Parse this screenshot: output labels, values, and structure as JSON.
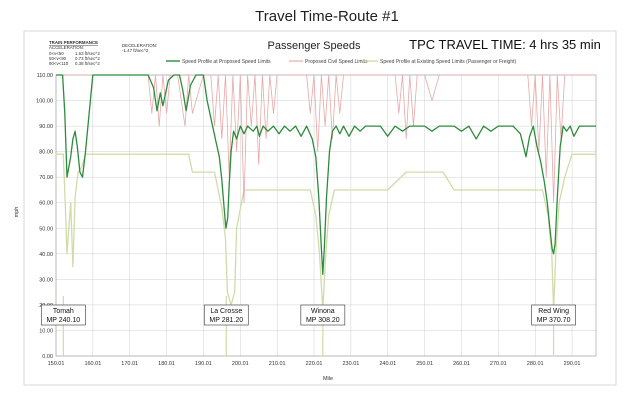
{
  "chart_data": {
    "type": "line",
    "title": "Travel Time-Route #1",
    "subtitle": "Passenger Speeds",
    "travel_time_label": "TPC TRAVEL TIME: 4 hrs 35 min",
    "xlabel": "Mile",
    "ylabel": "mph",
    "xlim": [
      150.01,
      296.5
    ],
    "ylim": [
      0,
      110
    ],
    "x_ticks": [
      "150.01",
      "160.01",
      "170.01",
      "180.01",
      "190.01",
      "200.01",
      "210.01",
      "220.01",
      "230.01",
      "240.01",
      "250.01",
      "260.01",
      "270.01",
      "280.01",
      "290.01"
    ],
    "y_ticks": [
      "0.00",
      "10.00",
      "20.00",
      "30.00",
      "40.00",
      "50.00",
      "60.00",
      "70.00",
      "80.00",
      "90.00",
      "100.00",
      "110.00"
    ],
    "grid": true,
    "legend_position": "top",
    "colors": {
      "proposed_profile": "#2e8b3d",
      "civil_limits": "#e8a8a8",
      "existing_profile": "#cfdcaa"
    },
    "train_performance": {
      "heading": "TRAIN PERFORMANCE",
      "acceleration_label": "ACCELERATION:",
      "deceleration_label": "DECELERATION:",
      "deceleration_value": "-1.47 ft/sec^2",
      "rows": [
        {
          "label": "0<v<50",
          "value": "1.63 ft/sec^2"
        },
        {
          "label": "50<v<90",
          "value": "0.73 ft/sec^2"
        },
        {
          "label": "90<v<110",
          "value": "0.38 ft/sec^2"
        }
      ]
    },
    "stations": [
      {
        "name": "Tomah",
        "mp": "MP 240.10",
        "x": 152.0
      },
      {
        "name": "La Crosse",
        "mp": "MP 281.20",
        "x": 196.2
      },
      {
        "name": "Winona",
        "mp": "MP 308.20",
        "x": 222.4
      },
      {
        "name": "Red Wing",
        "mp": "MP 370.70",
        "x": 285.0
      }
    ],
    "series": [
      {
        "name": "Speed Profile at Proposed Speed Limits",
        "x": [
          150.01,
          151.8,
          152.4,
          153.0,
          154.0,
          154.6,
          155.2,
          155.8,
          156.5,
          157.2,
          158.0,
          160.0,
          170.0,
          175.0,
          176.5,
          177.4,
          178.3,
          179.0,
          180.5,
          182.0,
          183.5,
          184.4,
          185.3,
          186.5,
          188.0,
          190.0,
          191.0,
          192.5,
          193.4,
          194.3,
          195.0,
          195.6,
          196.1,
          196.6,
          197.0,
          197.5,
          198.2,
          199.0,
          200.0,
          201.0,
          202.0,
          203.5,
          204.5,
          205.2,
          206.2,
          207.5,
          209.0,
          210.5,
          212.0,
          213.5,
          215.0,
          216.5,
          218.0,
          219.5,
          220.5,
          221.3,
          222.0,
          222.4,
          222.8,
          223.4,
          224.2,
          225.0,
          226.0,
          227.0,
          228.0,
          229.5,
          231.0,
          232.5,
          234.0,
          236.0,
          238.0,
          240.0,
          242.0,
          244.0,
          246.0,
          248.0,
          250.0,
          252.0,
          254.0,
          256.0,
          258.0,
          260.0,
          262.0,
          264.0,
          266.0,
          268.0,
          270.0,
          272.0,
          274.0,
          276.0,
          277.5,
          278.5,
          279.5,
          280.5,
          281.5,
          282.5,
          283.3,
          284.0,
          284.6,
          285.0,
          285.4,
          286.0,
          286.8,
          287.6,
          288.5,
          289.5,
          290.5,
          292.0,
          294.0,
          296.5
        ],
        "y": [
          110,
          110,
          95,
          70,
          78,
          85,
          88,
          82,
          72,
          70,
          80,
          110,
          110,
          110,
          105,
          96,
          103,
          98,
          108,
          110,
          110,
          104,
          96,
          106,
          110,
          110,
          100,
          90,
          84,
          78,
          69,
          58,
          50,
          54,
          67,
          80,
          88,
          85,
          90,
          87,
          90,
          88,
          90,
          86,
          90,
          88,
          90,
          87,
          90,
          88,
          90,
          86,
          90,
          85,
          78,
          62,
          42,
          32,
          42,
          62,
          80,
          88,
          90,
          87,
          90,
          86,
          90,
          88,
          90,
          90,
          90,
          86,
          90,
          88,
          90,
          90,
          90,
          88,
          90,
          90,
          90,
          88,
          90,
          85,
          90,
          88,
          90,
          90,
          90,
          87,
          78,
          86,
          90,
          82,
          76,
          68,
          60,
          50,
          42,
          40,
          44,
          62,
          82,
          90,
          88,
          90,
          86,
          90,
          90,
          90
        ]
      },
      {
        "name": "Proposed Civil Speed Limits",
        "x": [
          150.01,
          158.0,
          160.0,
          175.0,
          176.0,
          177.0,
          178.0,
          179.0,
          180.0,
          181.0,
          183.0,
          184.0,
          185.0,
          186.0,
          187.0,
          190.0,
          192.0,
          193.0,
          194.0,
          195.0,
          196.0,
          197.0,
          198.0,
          199.0,
          200.0,
          201.0,
          202.0,
          203.0,
          204.0,
          205.0,
          206.0,
          207.0,
          208.0,
          209.0,
          210.0,
          212.0,
          214.0,
          216.0,
          218.0,
          219.0,
          220.0,
          221.0,
          222.0,
          223.0,
          224.0,
          225.0,
          226.0,
          227.0,
          228.0,
          230.0,
          232.0,
          234.0,
          236.0,
          238.0,
          240.0,
          242.0,
          243.0,
          244.0,
          245.0,
          246.0,
          247.0,
          248.0,
          250.0,
          252.0,
          254.0,
          256.0,
          258.0,
          260.0,
          262.0,
          264.0,
          266.0,
          268.0,
          270.0,
          272.0,
          274.0,
          276.0,
          278.0,
          279.0,
          280.0,
          281.0,
          282.0,
          283.0,
          284.0,
          285.0,
          286.0,
          287.0,
          288.0,
          290.0,
          293.0,
          296.5
        ],
        "y": [
          110,
          110,
          110,
          110,
          95,
          110,
          90,
          110,
          95,
          110,
          110,
          100,
          90,
          110,
          95,
          110,
          110,
          90,
          110,
          85,
          110,
          70,
          110,
          80,
          110,
          60,
          110,
          90,
          110,
          75,
          110,
          85,
          110,
          95,
          110,
          110,
          110,
          110,
          110,
          95,
          110,
          80,
          110,
          90,
          110,
          85,
          110,
          95,
          110,
          110,
          110,
          110,
          110,
          110,
          110,
          110,
          95,
          110,
          85,
          110,
          90,
          110,
          110,
          100,
          110,
          110,
          110,
          110,
          110,
          110,
          110,
          110,
          110,
          110,
          110,
          110,
          110,
          90,
          110,
          80,
          110,
          70,
          110,
          60,
          110,
          85,
          110,
          110,
          110,
          110
        ]
      },
      {
        "name": "Speed Profile at Existing Speed Limits (Passenger or Freight)",
        "x": [
          150.01,
          152.0,
          152.5,
          153.0,
          154.0,
          154.6,
          155.2,
          156.0,
          157.0,
          158.0,
          160.0,
          170.0,
          180.0,
          186.0,
          187.0,
          190.0,
          193.0,
          194.0,
          195.0,
          196.0,
          196.5,
          197.5,
          198.5,
          199.0,
          201.0,
          205.0,
          210.0,
          215.0,
          219.0,
          220.5,
          221.5,
          222.4,
          223.2,
          224.0,
          225.5,
          227.0,
          230.0,
          235.0,
          238.0,
          240.0,
          245.0,
          250.0,
          255.0,
          258.0,
          260.0,
          265.0,
          270.0,
          275.0,
          280.0,
          282.0,
          283.5,
          284.5,
          285.0,
          285.6,
          286.5,
          288.0,
          290.0,
          293.0,
          296.5
        ],
        "y": [
          79,
          79,
          60,
          40,
          60,
          35,
          62,
          72,
          74,
          79,
          79,
          79,
          79,
          79,
          72,
          72,
          72,
          65,
          58,
          46,
          25,
          20,
          25,
          50,
          65,
          65,
          65,
          65,
          65,
          55,
          40,
          18,
          40,
          55,
          65,
          65,
          65,
          65,
          65,
          65,
          72,
          72,
          72,
          65,
          65,
          65,
          65,
          65,
          65,
          65,
          55,
          40,
          18,
          40,
          60,
          70,
          79,
          79,
          79
        ]
      }
    ]
  }
}
